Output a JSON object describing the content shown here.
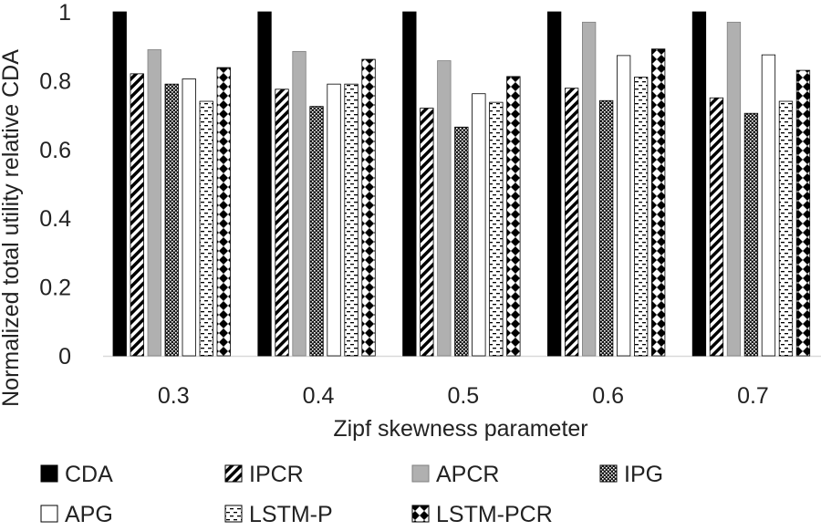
{
  "chart_data": {
    "type": "bar",
    "title": "",
    "xlabel": "Zipf skewness parameter",
    "ylabel": "Normalized total utility relative CDA",
    "ylim": [
      0,
      1
    ],
    "yticks": [
      "0",
      "0.2",
      "0.4",
      "0.6",
      "0.8",
      "1"
    ],
    "grid": false,
    "legend_position": "bottom",
    "categories": [
      "0.3",
      "0.4",
      "0.5",
      "0.6",
      "0.7"
    ],
    "series": [
      {
        "name": "CDA",
        "pattern": "solid-black",
        "values": [
          1.0,
          1.0,
          1.0,
          1.0,
          1.0
        ]
      },
      {
        "name": "IPCR",
        "pattern": "diagonal",
        "values": [
          0.82,
          0.775,
          0.72,
          0.778,
          0.75
        ]
      },
      {
        "name": "APCR",
        "pattern": "solid-gray",
        "values": [
          0.89,
          0.885,
          0.858,
          0.97,
          0.97
        ]
      },
      {
        "name": "IPG",
        "pattern": "dense-dots",
        "values": [
          0.79,
          0.725,
          0.665,
          0.742,
          0.705
        ]
      },
      {
        "name": "APG",
        "pattern": "white",
        "values": [
          0.805,
          0.79,
          0.762,
          0.873,
          0.875
        ]
      },
      {
        "name": "LSTM-P",
        "pattern": "dashes",
        "values": [
          0.74,
          0.79,
          0.737,
          0.81,
          0.74
        ]
      },
      {
        "name": "LSTM-PCR",
        "pattern": "checker",
        "values": [
          0.838,
          0.862,
          0.812,
          0.892,
          0.83
        ]
      }
    ]
  },
  "colors": {
    "black": "#000000",
    "gray": "#b0b0b0",
    "axis": "#d9d9d9",
    "text": "#222222"
  }
}
